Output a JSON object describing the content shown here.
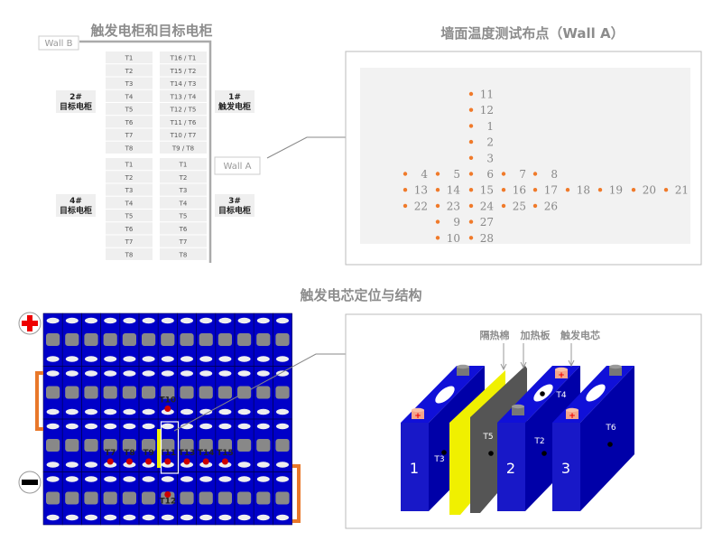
{
  "top_left": {
    "title": "触发电柜和目标电柜",
    "wall_b": "Wall B",
    "wall_a": "Wall A",
    "cabinets": [
      {
        "id": "2#",
        "name": "目标电柜"
      },
      {
        "id": "1#",
        "name": "触发电柜"
      },
      {
        "id": "4#",
        "name": "目标电柜"
      },
      {
        "id": "3#",
        "name": "目标电柜"
      }
    ],
    "upper_left_col": [
      "T1",
      "T2",
      "T3",
      "T4",
      "T5",
      "T6",
      "T7",
      "T8"
    ],
    "upper_right_col": [
      "T16 / T1",
      "T15 / T2",
      "T14 / T3",
      "T13 / T4",
      "T12 / T5",
      "T11 / T6",
      "T10 / T7",
      "T9 / T8"
    ],
    "lower_left_col": [
      "T1",
      "T2",
      "T3",
      "T4",
      "T5",
      "T6",
      "T7",
      "T8"
    ],
    "lower_right_col": [
      "T1",
      "T2",
      "T3",
      "T4",
      "T5",
      "T6",
      "T7",
      "T8"
    ]
  },
  "top_right": {
    "title": "墙面温度测试布点（Wall A）",
    "points": [
      {
        "label": "11",
        "col": 3,
        "row": 0
      },
      {
        "label": "12",
        "col": 3,
        "row": 1
      },
      {
        "label": "1",
        "col": 3,
        "row": 2
      },
      {
        "label": "2",
        "col": 3,
        "row": 3
      },
      {
        "label": "3",
        "col": 3,
        "row": 4
      },
      {
        "label": "4",
        "col": 0,
        "row": 5
      },
      {
        "label": "5",
        "col": 1,
        "row": 5
      },
      {
        "label": "6",
        "col": 3,
        "row": 5
      },
      {
        "label": "7",
        "col": 4,
        "row": 5
      },
      {
        "label": "8",
        "col": 5,
        "row": 5
      },
      {
        "label": "13",
        "col": 0,
        "row": 6
      },
      {
        "label": "14",
        "col": 1,
        "row": 6
      },
      {
        "label": "15",
        "col": 3,
        "row": 6
      },
      {
        "label": "16",
        "col": 4,
        "row": 6
      },
      {
        "label": "17",
        "col": 5,
        "row": 6
      },
      {
        "label": "18",
        "col": 6,
        "row": 6
      },
      {
        "label": "19",
        "col": 7,
        "row": 6
      },
      {
        "label": "20",
        "col": 8,
        "row": 6
      },
      {
        "label": "21",
        "col": 9,
        "row": 6
      },
      {
        "label": "22",
        "col": 0,
        "row": 7
      },
      {
        "label": "23",
        "col": 1,
        "row": 7
      },
      {
        "label": "24",
        "col": 3,
        "row": 7
      },
      {
        "label": "25",
        "col": 4,
        "row": 7
      },
      {
        "label": "26",
        "col": 5,
        "row": 7
      },
      {
        "label": "9",
        "col": 1,
        "row": 8
      },
      {
        "label": "27",
        "col": 3,
        "row": 8
      },
      {
        "label": "10",
        "col": 1,
        "row": 9
      },
      {
        "label": "28",
        "col": 3,
        "row": 9
      }
    ]
  },
  "bottom": {
    "title": "触发电芯定位与结构",
    "module_labels": [
      {
        "label": "T10",
        "col": 6,
        "row": 1,
        "pos": "above"
      },
      {
        "label": "T7",
        "col": 3,
        "row": 2,
        "pos": "above"
      },
      {
        "label": "T8",
        "col": 4,
        "row": 2,
        "pos": "above"
      },
      {
        "label": "T9",
        "col": 5,
        "row": 2,
        "pos": "above"
      },
      {
        "label": "T11",
        "col": 6,
        "row": 2,
        "pos": "above"
      },
      {
        "label": "T13",
        "col": 7,
        "row": 2,
        "pos": "above"
      },
      {
        "label": "T14",
        "col": 8,
        "row": 2,
        "pos": "above"
      },
      {
        "label": "T15",
        "col": 9,
        "row": 2,
        "pos": "above"
      },
      {
        "label": "T12",
        "col": 6,
        "row": 3,
        "pos": "below"
      }
    ],
    "structure": {
      "insulation": "隔热棉",
      "heater": "加热板",
      "trigger_cell": "触发电芯",
      "cell_numbers": [
        "1",
        "2",
        "3"
      ],
      "sensors": [
        "T3",
        "T5",
        "T2",
        "T4",
        "T6"
      ],
      "plus": "+"
    }
  },
  "colors": {
    "cell_blue": "#0000c8",
    "orange": "#e8782a",
    "red": "#cc0000",
    "yellow": "#f0f000",
    "heater": "#555555",
    "point": "#f07a2a"
  }
}
